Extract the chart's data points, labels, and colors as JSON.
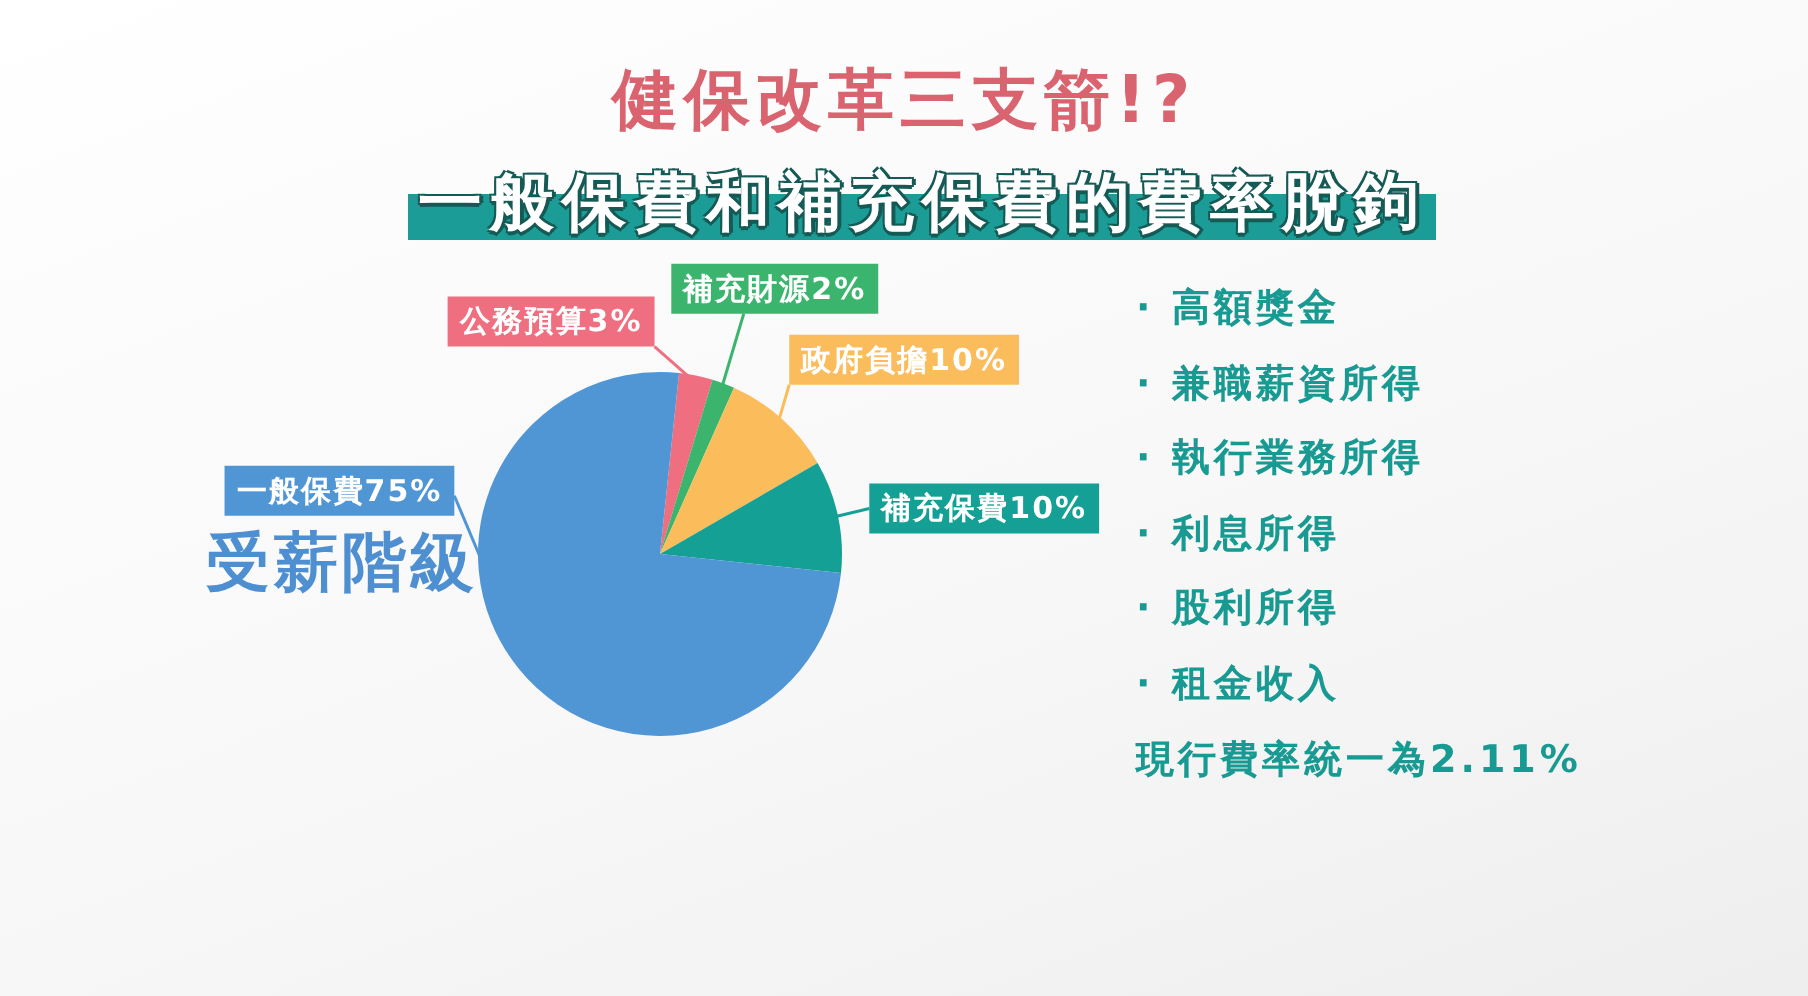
{
  "chart_data": {
    "type": "pie",
    "title": "健保改革三支箭!?",
    "subtitle": "一般保費和補充保費的費率脫鉤",
    "categories": [
      "公務預算",
      "補充財源",
      "政府負擔",
      "補充保費",
      "一般保費"
    ],
    "values": [
      3,
      2,
      10,
      10,
      75
    ],
    "colors": [
      "#ef6f80",
      "#3bb56e",
      "#fbbd5c",
      "#15a096",
      "#5096d5"
    ],
    "value_labels": [
      "3%",
      "2%",
      "10%",
      "10%",
      "75%"
    ],
    "annotations": [
      "受薪階級",
      "· 高額獎金",
      "· 兼職薪資所得",
      "· 執行業務所得",
      "· 利息所得",
      "· 股利所得",
      "· 租金收入",
      "現行費率統一為2.11%"
    ]
  }
}
